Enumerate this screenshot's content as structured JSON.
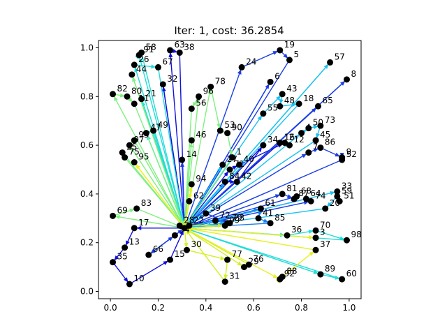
{
  "chart_data": {
    "type": "scatter",
    "title": "Iter: 1, cost: 36.2854",
    "xlabel": "",
    "ylabel": "",
    "xlim": [
      -0.05,
      1.05
    ],
    "ylim": [
      -0.03,
      1.03
    ],
    "xticks": [
      "0.0",
      "0.2",
      "0.4",
      "0.6",
      "0.8",
      "1.0"
    ],
    "yticks": [
      "0.0",
      "0.2",
      "0.4",
      "0.6",
      "0.8",
      "1.0"
    ],
    "grid": false,
    "depot": {
      "x": 0.31,
      "y": 0.26
    },
    "nodes": [
      {
        "id": 1,
        "x": 0.51,
        "y": 0.55
      },
      {
        "id": 2,
        "x": 0.73,
        "y": 0.61
      },
      {
        "id": 3,
        "x": 0.86,
        "y": 0.22
      },
      {
        "id": 4,
        "x": 0.8,
        "y": 0.65
      },
      {
        "id": 5,
        "x": 0.75,
        "y": 0.95
      },
      {
        "id": 6,
        "x": 0.67,
        "y": 0.86
      },
      {
        "id": 7,
        "x": 0.83,
        "y": 0.57
      },
      {
        "id": 8,
        "x": 0.99,
        "y": 0.87
      },
      {
        "id": 9,
        "x": 0.97,
        "y": 0.55
      },
      {
        "id": 10,
        "x": 0.08,
        "y": 0.03
      },
      {
        "id": 11,
        "x": 0.1,
        "y": 0.77
      },
      {
        "id": 12,
        "x": 0.75,
        "y": 0.6
      },
      {
        "id": 13,
        "x": 0.06,
        "y": 0.18
      },
      {
        "id": 14,
        "x": 0.3,
        "y": 0.54
      },
      {
        "id": 15,
        "x": 0.25,
        "y": 0.13
      },
      {
        "id": 16,
        "x": 0.71,
        "y": 0.61
      },
      {
        "id": 17,
        "x": 0.1,
        "y": 0.26
      },
      {
        "id": 18,
        "x": 0.79,
        "y": 0.77
      },
      {
        "id": 19,
        "x": 0.71,
        "y": 0.99
      },
      {
        "id": 20,
        "x": 0.9,
        "y": 0.34
      },
      {
        "id": 21,
        "x": 0.13,
        "y": 0.79
      },
      {
        "id": 22,
        "x": 0.33,
        "y": 0.27
      },
      {
        "id": 23,
        "x": 0.5,
        "y": 0.28
      },
      {
        "id": 24,
        "x": 0.55,
        "y": 0.92
      },
      {
        "id": 25,
        "x": 0.05,
        "y": 0.57
      },
      {
        "id": 26,
        "x": 0.1,
        "y": 0.93
      },
      {
        "id": 27,
        "x": 0.47,
        "y": 0.52
      },
      {
        "id": 28,
        "x": 0.29,
        "y": 0.27
      },
      {
        "id": 29,
        "x": 0.56,
        "y": 0.1
      },
      {
        "id": 30,
        "x": 0.32,
        "y": 0.17
      },
      {
        "id": 31,
        "x": 0.48,
        "y": 0.04
      },
      {
        "id": 32,
        "x": 0.22,
        "y": 0.85
      },
      {
        "id": 33,
        "x": 0.95,
        "y": 0.41
      },
      {
        "id": 34,
        "x": 0.64,
        "y": 0.6
      },
      {
        "id": 35,
        "x": 0.01,
        "y": 0.12
      },
      {
        "id": 36,
        "x": 0.74,
        "y": 0.23
      },
      {
        "id": 37,
        "x": 0.86,
        "y": 0.17
      },
      {
        "id": 38,
        "x": 0.29,
        "y": 0.98
      },
      {
        "id": 39,
        "x": 0.4,
        "y": 0.32
      },
      {
        "id": 40,
        "x": 0.54,
        "y": 0.52
      },
      {
        "id": 41,
        "x": 0.62,
        "y": 0.3
      },
      {
        "id": 42,
        "x": 0.53,
        "y": 0.45
      },
      {
        "id": 43,
        "x": 0.72,
        "y": 0.81
      },
      {
        "id": 44,
        "x": 0.09,
        "y": 0.89
      },
      {
        "id": 45,
        "x": 0.86,
        "y": 0.62
      },
      {
        "id": 46,
        "x": 0.34,
        "y": 0.62
      },
      {
        "id": 47,
        "x": 0.15,
        "y": 0.65
      },
      {
        "id": 48,
        "x": 0.71,
        "y": 0.76
      },
      {
        "id": 49,
        "x": 0.18,
        "y": 0.66
      },
      {
        "id": 50,
        "x": 0.83,
        "y": 0.67
      },
      {
        "id": 51,
        "x": 0.96,
        "y": 0.37
      },
      {
        "id": 52,
        "x": 0.97,
        "y": 0.54
      },
      {
        "id": 53,
        "x": 0.46,
        "y": 0.66
      },
      {
        "id": 54,
        "x": 0.27,
        "y": 0.23
      },
      {
        "id": 55,
        "x": 0.64,
        "y": 0.73
      },
      {
        "id": 56,
        "x": 0.34,
        "y": 0.75
      },
      {
        "id": 57,
        "x": 0.92,
        "y": 0.94
      },
      {
        "id": 58,
        "x": 0.13,
        "y": 0.98
      },
      {
        "id": 59,
        "x": 0.95,
        "y": 0.39
      },
      {
        "id": 60,
        "x": 0.97,
        "y": 0.05
      },
      {
        "id": 61,
        "x": 0.63,
        "y": 0.34
      },
      {
        "id": 62,
        "x": 0.33,
        "y": 0.37
      },
      {
        "id": 63,
        "x": 0.25,
        "y": 0.99
      },
      {
        "id": 64,
        "x": 0.82,
        "y": 0.38
      },
      {
        "id": 65,
        "x": 0.87,
        "y": 0.76
      },
      {
        "id": 66,
        "x": 0.16,
        "y": 0.15
      },
      {
        "id": 67,
        "x": 0.2,
        "y": 0.92
      },
      {
        "id": 68,
        "x": 0.78,
        "y": 0.39
      },
      {
        "id": 69,
        "x": 0.01,
        "y": 0.31
      },
      {
        "id": 70,
        "x": 0.86,
        "y": 0.25
      },
      {
        "id": 71,
        "x": 0.5,
        "y": 0.5
      },
      {
        "id": 72,
        "x": 0.44,
        "y": 0.29
      },
      {
        "id": 73,
        "x": 0.88,
        "y": 0.68
      },
      {
        "id": 74,
        "x": 0.84,
        "y": 0.37
      },
      {
        "id": 75,
        "x": 0.06,
        "y": 0.55
      },
      {
        "id": 76,
        "x": 0.58,
        "y": 0.11
      },
      {
        "id": 77,
        "x": 0.49,
        "y": 0.13
      },
      {
        "id": 78,
        "x": 0.42,
        "y": 0.84
      },
      {
        "id": 79,
        "x": 0.49,
        "y": 0.28
      },
      {
        "id": 80,
        "x": 0.07,
        "y": 0.8
      },
      {
        "id": 81,
        "x": 0.72,
        "y": 0.4
      },
      {
        "id": 82,
        "x": 0.01,
        "y": 0.81
      },
      {
        "id": 83,
        "x": 0.11,
        "y": 0.34
      },
      {
        "id": 84,
        "x": 0.48,
        "y": 0.45
      },
      {
        "id": 85,
        "x": 0.67,
        "y": 0.28
      },
      {
        "id": 86,
        "x": 0.88,
        "y": 0.59
      },
      {
        "id": 87,
        "x": 0.77,
        "y": 0.38
      },
      {
        "id": 88,
        "x": 0.72,
        "y": 0.06
      },
      {
        "id": 89,
        "x": 0.88,
        "y": 0.07
      },
      {
        "id": 90,
        "x": 0.49,
        "y": 0.65
      },
      {
        "id": 91,
        "x": 0.12,
        "y": 0.97
      },
      {
        "id": 92,
        "x": 0.71,
        "y": 0.05
      },
      {
        "id": 93,
        "x": 0.1,
        "y": 0.62
      },
      {
        "id": 94,
        "x": 0.34,
        "y": 0.44
      },
      {
        "id": 95,
        "x": 0.1,
        "y": 0.53
      },
      {
        "id": 96,
        "x": 0.37,
        "y": 0.8
      },
      {
        "id": 97,
        "x": 0.08,
        "y": 0.6
      },
      {
        "id": 98,
        "x": 0.99,
        "y": 0.21
      },
      {
        "id": 99,
        "x": 0.48,
        "y": 0.27
      }
    ],
    "routes": [
      {
        "color": "#1010dd",
        "path": [
          0,
          17,
          13,
          35,
          10,
          15,
          0
        ]
      },
      {
        "color": "#1a3fe6",
        "path": [
          0,
          66,
          54,
          0
        ]
      },
      {
        "color": "#1010dd",
        "path": [
          0,
          71,
          40,
          2,
          12,
          16,
          0
        ]
      },
      {
        "color": "#1010dd",
        "path": [
          0,
          84,
          42,
          34,
          0
        ]
      },
      {
        "color": "#1a3fe6",
        "path": [
          0,
          24,
          19,
          5,
          0
        ]
      },
      {
        "color": "#1a3fe6",
        "path": [
          0,
          6,
          0
        ]
      },
      {
        "color": "#1a3fe6",
        "path": [
          0,
          8,
          0
        ]
      },
      {
        "color": "#1a3fe6",
        "path": [
          0,
          65,
          0
        ]
      },
      {
        "color": "#1a3fe6",
        "path": [
          0,
          7,
          86,
          9,
          52,
          0
        ]
      },
      {
        "color": "#1a3fe6",
        "path": [
          0,
          81,
          87,
          68,
          0
        ]
      },
      {
        "color": "#1a3fe6",
        "path": [
          0,
          74,
          64,
          0
        ]
      },
      {
        "color": "#1a3fe6",
        "path": [
          0,
          39,
          23,
          0
        ]
      },
      {
        "color": "#1010dd",
        "path": [
          0,
          63,
          38,
          0
        ]
      },
      {
        "color": "#1010dd",
        "path": [
          0,
          32,
          0
        ]
      },
      {
        "color": "#1a3fe6",
        "path": [
          0,
          14,
          0
        ]
      },
      {
        "color": "#1a7ff0",
        "path": [
          0,
          61,
          41,
          85,
          0
        ]
      },
      {
        "color": "#1a7ff0",
        "path": [
          0,
          72,
          79,
          0
        ]
      },
      {
        "color": "#19c2f0",
        "path": [
          0,
          33,
          51,
          59,
          20,
          0
        ]
      },
      {
        "color": "#19c2f0",
        "path": [
          0,
          55,
          43,
          48,
          18,
          0
        ]
      },
      {
        "color": "#19c2f0",
        "path": [
          0,
          4,
          50,
          73,
          45,
          0
        ]
      },
      {
        "color": "#19c2f0",
        "path": [
          0,
          57,
          0
        ]
      },
      {
        "color": "#19c2f0",
        "path": [
          0,
          27,
          0
        ]
      },
      {
        "color": "#22dcd8",
        "path": [
          0,
          36,
          70,
          98,
          0
        ]
      },
      {
        "color": "#22dcd8",
        "path": [
          0,
          89,
          60,
          0
        ]
      },
      {
        "color": "#22dcd8",
        "path": [
          0,
          91,
          58,
          0
        ]
      },
      {
        "color": "#22dcd8",
        "path": [
          0,
          26,
          67,
          0
        ]
      },
      {
        "color": "#22dcd8",
        "path": [
          0,
          21,
          0
        ]
      },
      {
        "color": "#22dcd8",
        "path": [
          0,
          47,
          49,
          0
        ]
      },
      {
        "color": "#7ff07f",
        "path": [
          0,
          82,
          80,
          11,
          0
        ]
      },
      {
        "color": "#7ff07f",
        "path": [
          0,
          69,
          83,
          0
        ]
      },
      {
        "color": "#7ff07f",
        "path": [
          0,
          25,
          75,
          0
        ]
      },
      {
        "color": "#7ff07f",
        "path": [
          0,
          44,
          0
        ]
      },
      {
        "color": "#7ff07f",
        "path": [
          0,
          96,
          56,
          0
        ]
      },
      {
        "color": "#7ff07f",
        "path": [
          0,
          78,
          53,
          90,
          1,
          0
        ]
      },
      {
        "color": "#7ff07f",
        "path": [
          0,
          46,
          0
        ]
      },
      {
        "color": "#7ff07f",
        "path": [
          0,
          97,
          93,
          0
        ]
      },
      {
        "color": "#d4f020",
        "path": [
          0,
          30,
          77,
          31,
          0
        ]
      },
      {
        "color": "#d4f020",
        "path": [
          0,
          29,
          76,
          0
        ]
      },
      {
        "color": "#e8f020",
        "path": [
          0,
          92,
          88,
          37,
          0
        ]
      },
      {
        "color": "#e8f020",
        "path": [
          0,
          3,
          0
        ]
      },
      {
        "color": "#f0f020",
        "path": [
          0,
          95,
          0
        ]
      },
      {
        "color": "#f0f020",
        "path": [
          0,
          94,
          62,
          0
        ]
      },
      {
        "color": "#c8f030",
        "path": [
          0,
          28,
          22,
          99,
          0
        ]
      }
    ]
  }
}
